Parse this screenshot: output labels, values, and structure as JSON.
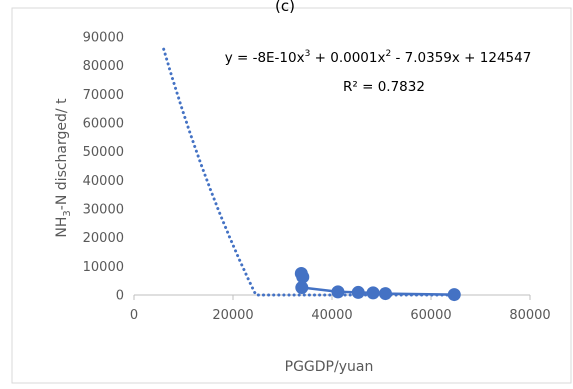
{
  "panel_label": "(c)",
  "chart_data": {
    "type": "scatter",
    "xlabel": "PGGDP/yuan",
    "ylabel_main": "NH",
    "ylabel_sub": "3",
    "ylabel_rest": "-N discharged/ t",
    "xlim": [
      0,
      80000
    ],
    "ylim": [
      0,
      90000
    ],
    "xticks": [
      "0",
      "20000",
      "40000",
      "60000",
      "80000"
    ],
    "yticks": [
      "0",
      "10000",
      "20000",
      "30000",
      "40000",
      "50000",
      "60000",
      "70000",
      "80000",
      "90000"
    ],
    "series": [
      {
        "marker_color": "#4472C4",
        "points": [
          {
            "x": 33800,
            "y": 7500
          },
          {
            "x": 34100,
            "y": 6300
          },
          {
            "x": 33900,
            "y": 2600
          },
          {
            "x": 41200,
            "y": 1100
          },
          {
            "x": 45300,
            "y": 900
          },
          {
            "x": 48300,
            "y": 750
          },
          {
            "x": 50800,
            "y": 500
          },
          {
            "x": 64700,
            "y": 150
          }
        ]
      }
    ],
    "trendline": {
      "kind": "polynomial-3",
      "coefficients": [
        -8e-10,
        0.0001,
        -7.0359,
        124547
      ],
      "equation_parts": [
        "y = -8E-10x",
        "3",
        " + 0.0001x",
        "2",
        " - 7.0359x + 124547"
      ],
      "r_squared": "R² = 0.7832",
      "x_range": [
        6000,
        64700
      ],
      "color": "#4472C4"
    },
    "grid": false,
    "legend": "none"
  }
}
